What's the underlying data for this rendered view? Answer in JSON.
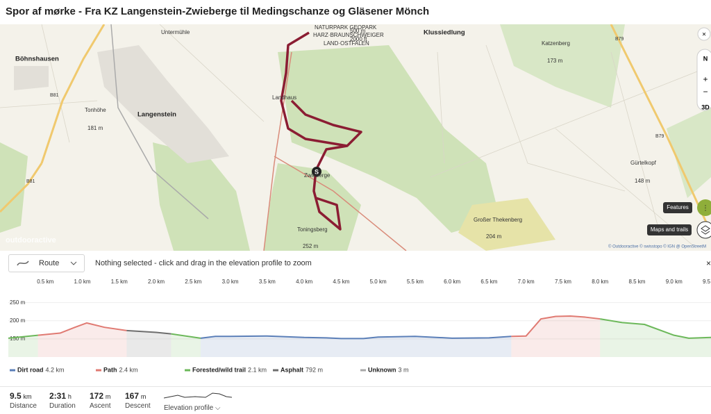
{
  "header": {
    "title": "Spor af mørke - Fra KZ Langenstein-Zwieberge til Medingschanze og Gläsener Mönch"
  },
  "map": {
    "labels": [
      "Böhnshausen",
      "Untermühle",
      "Langenstein",
      "Tonhöhe",
      "181 m",
      "B81",
      "B81",
      "Landhaus",
      "Zwieberge",
      "Toningsberg",
      "252 m",
      "Klussiedlung",
      "Katzenberg",
      "173 m",
      "B79",
      "B79",
      "Gürtelkopf",
      "148 m",
      "Großer Thekenberg",
      "204 m",
      "NATURPARK GEOPARK",
      "HARZ·BRAUNSCHWEIGER",
      "LAND·OSTFALEN"
    ],
    "scale": [
      "500 m",
      "2000 ft"
    ],
    "logo": "outdooractive",
    "attribution": "© Outdooractive © swisstopo © IGN @ OpenStreetM",
    "controls": {
      "north": "N",
      "three_d": "3D",
      "features": "Features",
      "maps_and_trails": "Maps and trails"
    }
  },
  "controls": {
    "dropdown": "Route",
    "hint": "Nothing selected - click and drag in the elevation profile to zoom",
    "close": "×"
  },
  "chart_data": {
    "type": "line",
    "x": [
      0,
      0.4,
      0.7,
      0.9,
      1.06,
      1.3,
      1.6,
      2.0,
      2.2,
      2.6,
      2.8,
      3.0,
      3.5,
      4.0,
      4.3,
      4.5,
      4.8,
      5.0,
      5.5,
      6.0,
      6.5,
      6.8,
      7.0,
      7.2,
      7.4,
      7.6,
      7.8,
      8.0,
      8.3,
      8.6,
      9.0,
      9.2,
      9.5
    ],
    "series": [
      {
        "name": "Dirt road",
        "length": "4.2 km",
        "color": "#5b7fb8",
        "values": [
          null,
          null,
          null,
          null,
          null,
          null,
          null,
          null,
          null,
          152,
          157,
          157,
          158,
          154,
          153,
          151,
          151,
          155,
          157,
          152,
          153,
          157,
          null,
          null,
          null,
          null,
          null,
          null,
          null,
          null,
          null,
          null,
          null
        ]
      },
      {
        "name": "Path",
        "length": "2.4 km",
        "color": "#e07a72",
        "values": [
          null,
          160,
          166,
          182,
          194,
          182,
          173,
          null,
          null,
          null,
          null,
          null,
          null,
          null,
          null,
          null,
          null,
          null,
          null,
          null,
          null,
          157,
          158,
          205,
          212,
          213,
          210,
          205,
          null,
          null,
          null,
          null,
          null
        ]
      },
      {
        "name": "Forested/wild trail",
        "length": "2.1 km",
        "color": "#6cb85a",
        "values": [
          152,
          160,
          null,
          null,
          null,
          null,
          null,
          null,
          164,
          152,
          null,
          null,
          null,
          null,
          null,
          null,
          null,
          null,
          null,
          null,
          null,
          null,
          null,
          null,
          null,
          null,
          null,
          205,
          195,
          190,
          160,
          152,
          154
        ]
      },
      {
        "name": "Asphalt",
        "length": "792 m",
        "color": "#6e6e6e",
        "values": [
          null,
          null,
          null,
          null,
          null,
          null,
          173,
          168,
          164,
          null,
          null,
          null,
          null,
          null,
          null,
          null,
          null,
          null,
          null,
          null,
          null,
          null,
          null,
          null,
          null,
          null,
          null,
          null,
          null,
          null,
          null,
          null,
          null
        ]
      },
      {
        "name": "Unknown",
        "length": "3 m",
        "color": "#a8a8a8",
        "values": [
          null,
          null,
          null,
          null,
          null,
          null,
          null,
          null,
          null,
          null,
          null,
          null,
          null,
          null,
          null,
          null,
          null,
          null,
          null,
          null,
          null,
          null,
          null,
          null,
          null,
          null,
          null,
          null,
          null,
          null,
          null,
          null,
          null
        ]
      }
    ],
    "xlim": [
      0,
      9.5
    ],
    "xticks": [
      {
        "value": 0.5,
        "label": "0.5 km"
      },
      {
        "value": 1.0,
        "label": "1.0 km"
      },
      {
        "value": 1.5,
        "label": "1.5 km"
      },
      {
        "value": 2.0,
        "label": "2.0 km"
      },
      {
        "value": 2.5,
        "label": "2.5 km"
      },
      {
        "value": 3.0,
        "label": "3.0 km"
      },
      {
        "value": 3.5,
        "label": "3.5 km"
      },
      {
        "value": 4.0,
        "label": "4.0 km"
      },
      {
        "value": 4.5,
        "label": "4.5 km"
      },
      {
        "value": 5.0,
        "label": "5.0 km"
      },
      {
        "value": 5.5,
        "label": "5.5 km"
      },
      {
        "value": 6.0,
        "label": "6.0 km"
      },
      {
        "value": 6.5,
        "label": "6.5 km"
      },
      {
        "value": 7.0,
        "label": "7.0 km"
      },
      {
        "value": 7.5,
        "label": "7.5 km"
      },
      {
        "value": 8.0,
        "label": "8.0 km"
      },
      {
        "value": 8.5,
        "label": "8.5 km"
      },
      {
        "value": 9.0,
        "label": "9.0 km"
      },
      {
        "value": 9.5,
        "label": "9.5 km"
      }
    ],
    "ylim": [
      100,
      280
    ],
    "yticks": [
      {
        "value": 250,
        "label": "250 m"
      },
      {
        "value": 200,
        "label": "200 m"
      },
      {
        "value": 150,
        "label": "150 m"
      }
    ],
    "grid": true
  },
  "stats": [
    {
      "value": "9.5",
      "unit": "km",
      "label": "Distance"
    },
    {
      "value": "2:31",
      "unit": "h",
      "label": "Duration"
    },
    {
      "value": "172",
      "unit": "m",
      "label": "Ascent"
    },
    {
      "value": "167",
      "unit": "m",
      "label": "Descent"
    },
    {
      "label": "Elevation profile ⌵"
    }
  ]
}
